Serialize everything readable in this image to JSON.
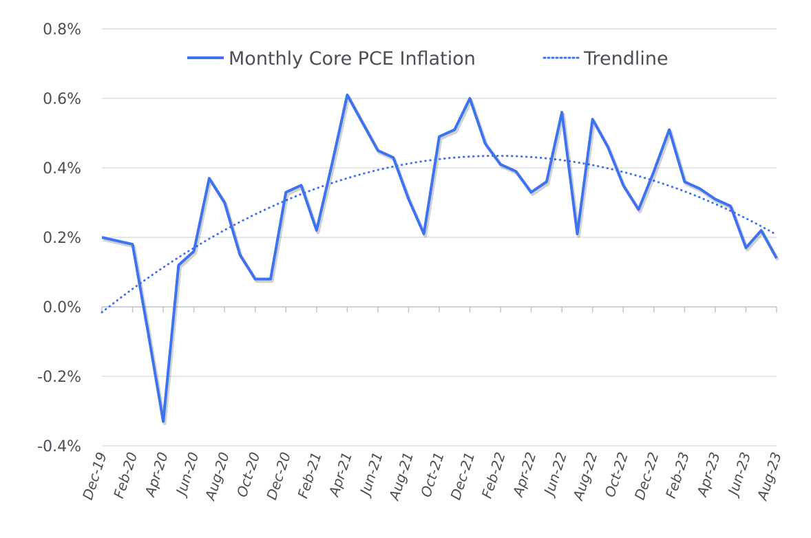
{
  "chart_data": {
    "type": "line",
    "title": "",
    "xlabel": "",
    "ylabel": "",
    "ylim": [
      -0.4,
      0.8
    ],
    "y_ticks": [
      "-0.4%",
      "-0.2%",
      "0.0%",
      "0.2%",
      "0.4%",
      "0.6%",
      "0.8%"
    ],
    "y_tick_values": [
      -0.4,
      -0.2,
      0.0,
      0.2,
      0.4,
      0.6,
      0.8
    ],
    "grid": true,
    "legend_position": "top",
    "x": [
      "Dec-19",
      "Jan-20",
      "Feb-20",
      "Mar-20",
      "Apr-20",
      "May-20",
      "Jun-20",
      "Jul-20",
      "Aug-20",
      "Sep-20",
      "Oct-20",
      "Nov-20",
      "Dec-20",
      "Jan-21",
      "Feb-21",
      "Mar-21",
      "Apr-21",
      "May-21",
      "Jun-21",
      "Jul-21",
      "Aug-21",
      "Sep-21",
      "Oct-21",
      "Nov-21",
      "Dec-21",
      "Jan-22",
      "Feb-22",
      "Mar-22",
      "Apr-22",
      "May-22",
      "Jun-22",
      "Jul-22",
      "Aug-22",
      "Sep-22",
      "Oct-22",
      "Nov-22",
      "Dec-22",
      "Jan-23",
      "Feb-23",
      "Mar-23",
      "Apr-23",
      "May-23",
      "Jun-23",
      "Jul-23",
      "Aug-23"
    ],
    "x_tick_labels": [
      "Dec-19",
      "Feb-20",
      "Apr-20",
      "Jun-20",
      "Aug-20",
      "Oct-20",
      "Dec-20",
      "Feb-21",
      "Apr-21",
      "Jun-21",
      "Aug-21",
      "Oct-21",
      "Dec-21",
      "Feb-22",
      "Apr-22",
      "Jun-22",
      "Aug-22",
      "Oct-22",
      "Dec-22",
      "Feb-23",
      "Apr-23",
      "Jun-23",
      "Aug-23"
    ],
    "series": [
      {
        "name": "Monthly Core PCE Inflation",
        "style": "solid",
        "color": "#3d73f0",
        "values": [
          0.2,
          0.19,
          0.18,
          -0.07,
          -0.33,
          0.12,
          0.16,
          0.37,
          0.3,
          0.15,
          0.08,
          0.08,
          0.33,
          0.35,
          0.22,
          0.41,
          0.61,
          0.53,
          0.45,
          0.43,
          0.31,
          0.21,
          0.49,
          0.51,
          0.6,
          0.47,
          0.41,
          0.39,
          0.33,
          0.36,
          0.56,
          0.21,
          0.54,
          0.46,
          0.35,
          0.28,
          0.39,
          0.51,
          0.36,
          0.34,
          0.31,
          0.29,
          0.17,
          0.22,
          0.14
        ]
      },
      {
        "name": "Trendline",
        "style": "dotted",
        "color": "#3d73f0",
        "fit": "polynomial-order-2"
      }
    ]
  }
}
